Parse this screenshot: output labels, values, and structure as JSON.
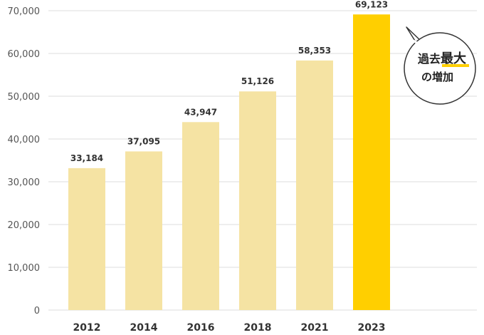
{
  "chart_data": {
    "type": "bar",
    "categories": [
      "2012",
      "2014",
      "2016",
      "2018",
      "2021",
      "2023"
    ],
    "values": [
      33184,
      37095,
      43947,
      51126,
      58353,
      69123
    ],
    "value_labels": [
      "33,184",
      "37,095",
      "43,947",
      "51,126",
      "58,353",
      "69,123"
    ],
    "title": "",
    "xlabel": "",
    "ylabel": "",
    "ylim": [
      0,
      70000
    ],
    "yticks": [
      0,
      10000,
      20000,
      30000,
      40000,
      50000,
      60000,
      70000
    ],
    "ytick_labels": [
      "0",
      "10,000",
      "20,000",
      "30,000",
      "40,000",
      "50,000",
      "60,000",
      "70,000"
    ],
    "grid": true,
    "highlight_index": 5,
    "colors": {
      "bar": "#f5e3a3",
      "highlight": "#ffcf00",
      "grid": "#dddddd",
      "underline": "#ffcf00"
    }
  },
  "callout": {
    "line1_prefix": "過去",
    "line1_emphasis": "最大",
    "line2": "の増加"
  }
}
